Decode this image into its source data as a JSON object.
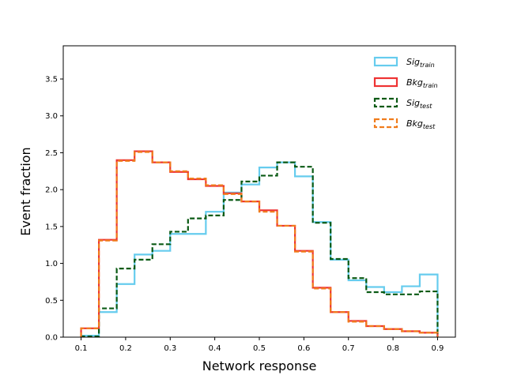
{
  "chart_data": {
    "type": "step",
    "xlabel": "Network response",
    "ylabel": "Event fraction",
    "xlim": [
      0.06,
      0.94
    ],
    "ylim": [
      0,
      3.95
    ],
    "xticks": [
      "0.1",
      "0.2",
      "0.3",
      "0.4",
      "0.5",
      "0.6",
      "0.7",
      "0.8",
      "0.9"
    ],
    "yticks": [
      "0.0",
      "0.5",
      "1.0",
      "1.5",
      "2.0",
      "2.5",
      "3.0",
      "3.5"
    ],
    "bin_edges": [
      0.1,
      0.14,
      0.18,
      0.22,
      0.26,
      0.3,
      0.34,
      0.38,
      0.42,
      0.46,
      0.5,
      0.54,
      0.58,
      0.62,
      0.66,
      0.7,
      0.74,
      0.78,
      0.82,
      0.86,
      0.9
    ],
    "legend_position": "upper-right",
    "series": [
      {
        "name": "Sig",
        "subscript": "train",
        "color": "#66ccee",
        "style": "solid",
        "values": [
          0.02,
          0.34,
          0.72,
          1.12,
          1.17,
          1.4,
          1.4,
          1.7,
          1.96,
          2.07,
          2.3,
          2.37,
          2.18,
          1.56,
          1.05,
          0.77,
          0.68,
          0.61,
          0.69,
          0.85
        ]
      },
      {
        "name": "Bkg",
        "subscript": "train",
        "color": "#ee3333",
        "style": "solid",
        "values": [
          0.12,
          1.32,
          2.4,
          2.52,
          2.37,
          2.24,
          2.14,
          2.05,
          1.95,
          1.84,
          1.72,
          1.51,
          1.17,
          0.67,
          0.34,
          0.22,
          0.15,
          0.11,
          0.08,
          0.06
        ]
      },
      {
        "name": "Sig",
        "subscript": "test",
        "color": "#0a5a14",
        "style": "dashed",
        "values": [
          0.01,
          0.39,
          0.93,
          1.05,
          1.26,
          1.43,
          1.61,
          1.65,
          1.86,
          2.11,
          2.19,
          2.37,
          2.31,
          1.55,
          1.06,
          0.8,
          0.61,
          0.58,
          0.58,
          0.62
        ]
      },
      {
        "name": "Bkg",
        "subscript": "test",
        "color": "#f07c1c",
        "style": "dashed",
        "values": [
          0.12,
          1.31,
          2.39,
          2.51,
          2.37,
          2.25,
          2.15,
          2.06,
          1.94,
          1.84,
          1.7,
          1.51,
          1.16,
          0.66,
          0.34,
          0.21,
          0.15,
          0.11,
          0.08,
          0.06
        ]
      }
    ]
  }
}
